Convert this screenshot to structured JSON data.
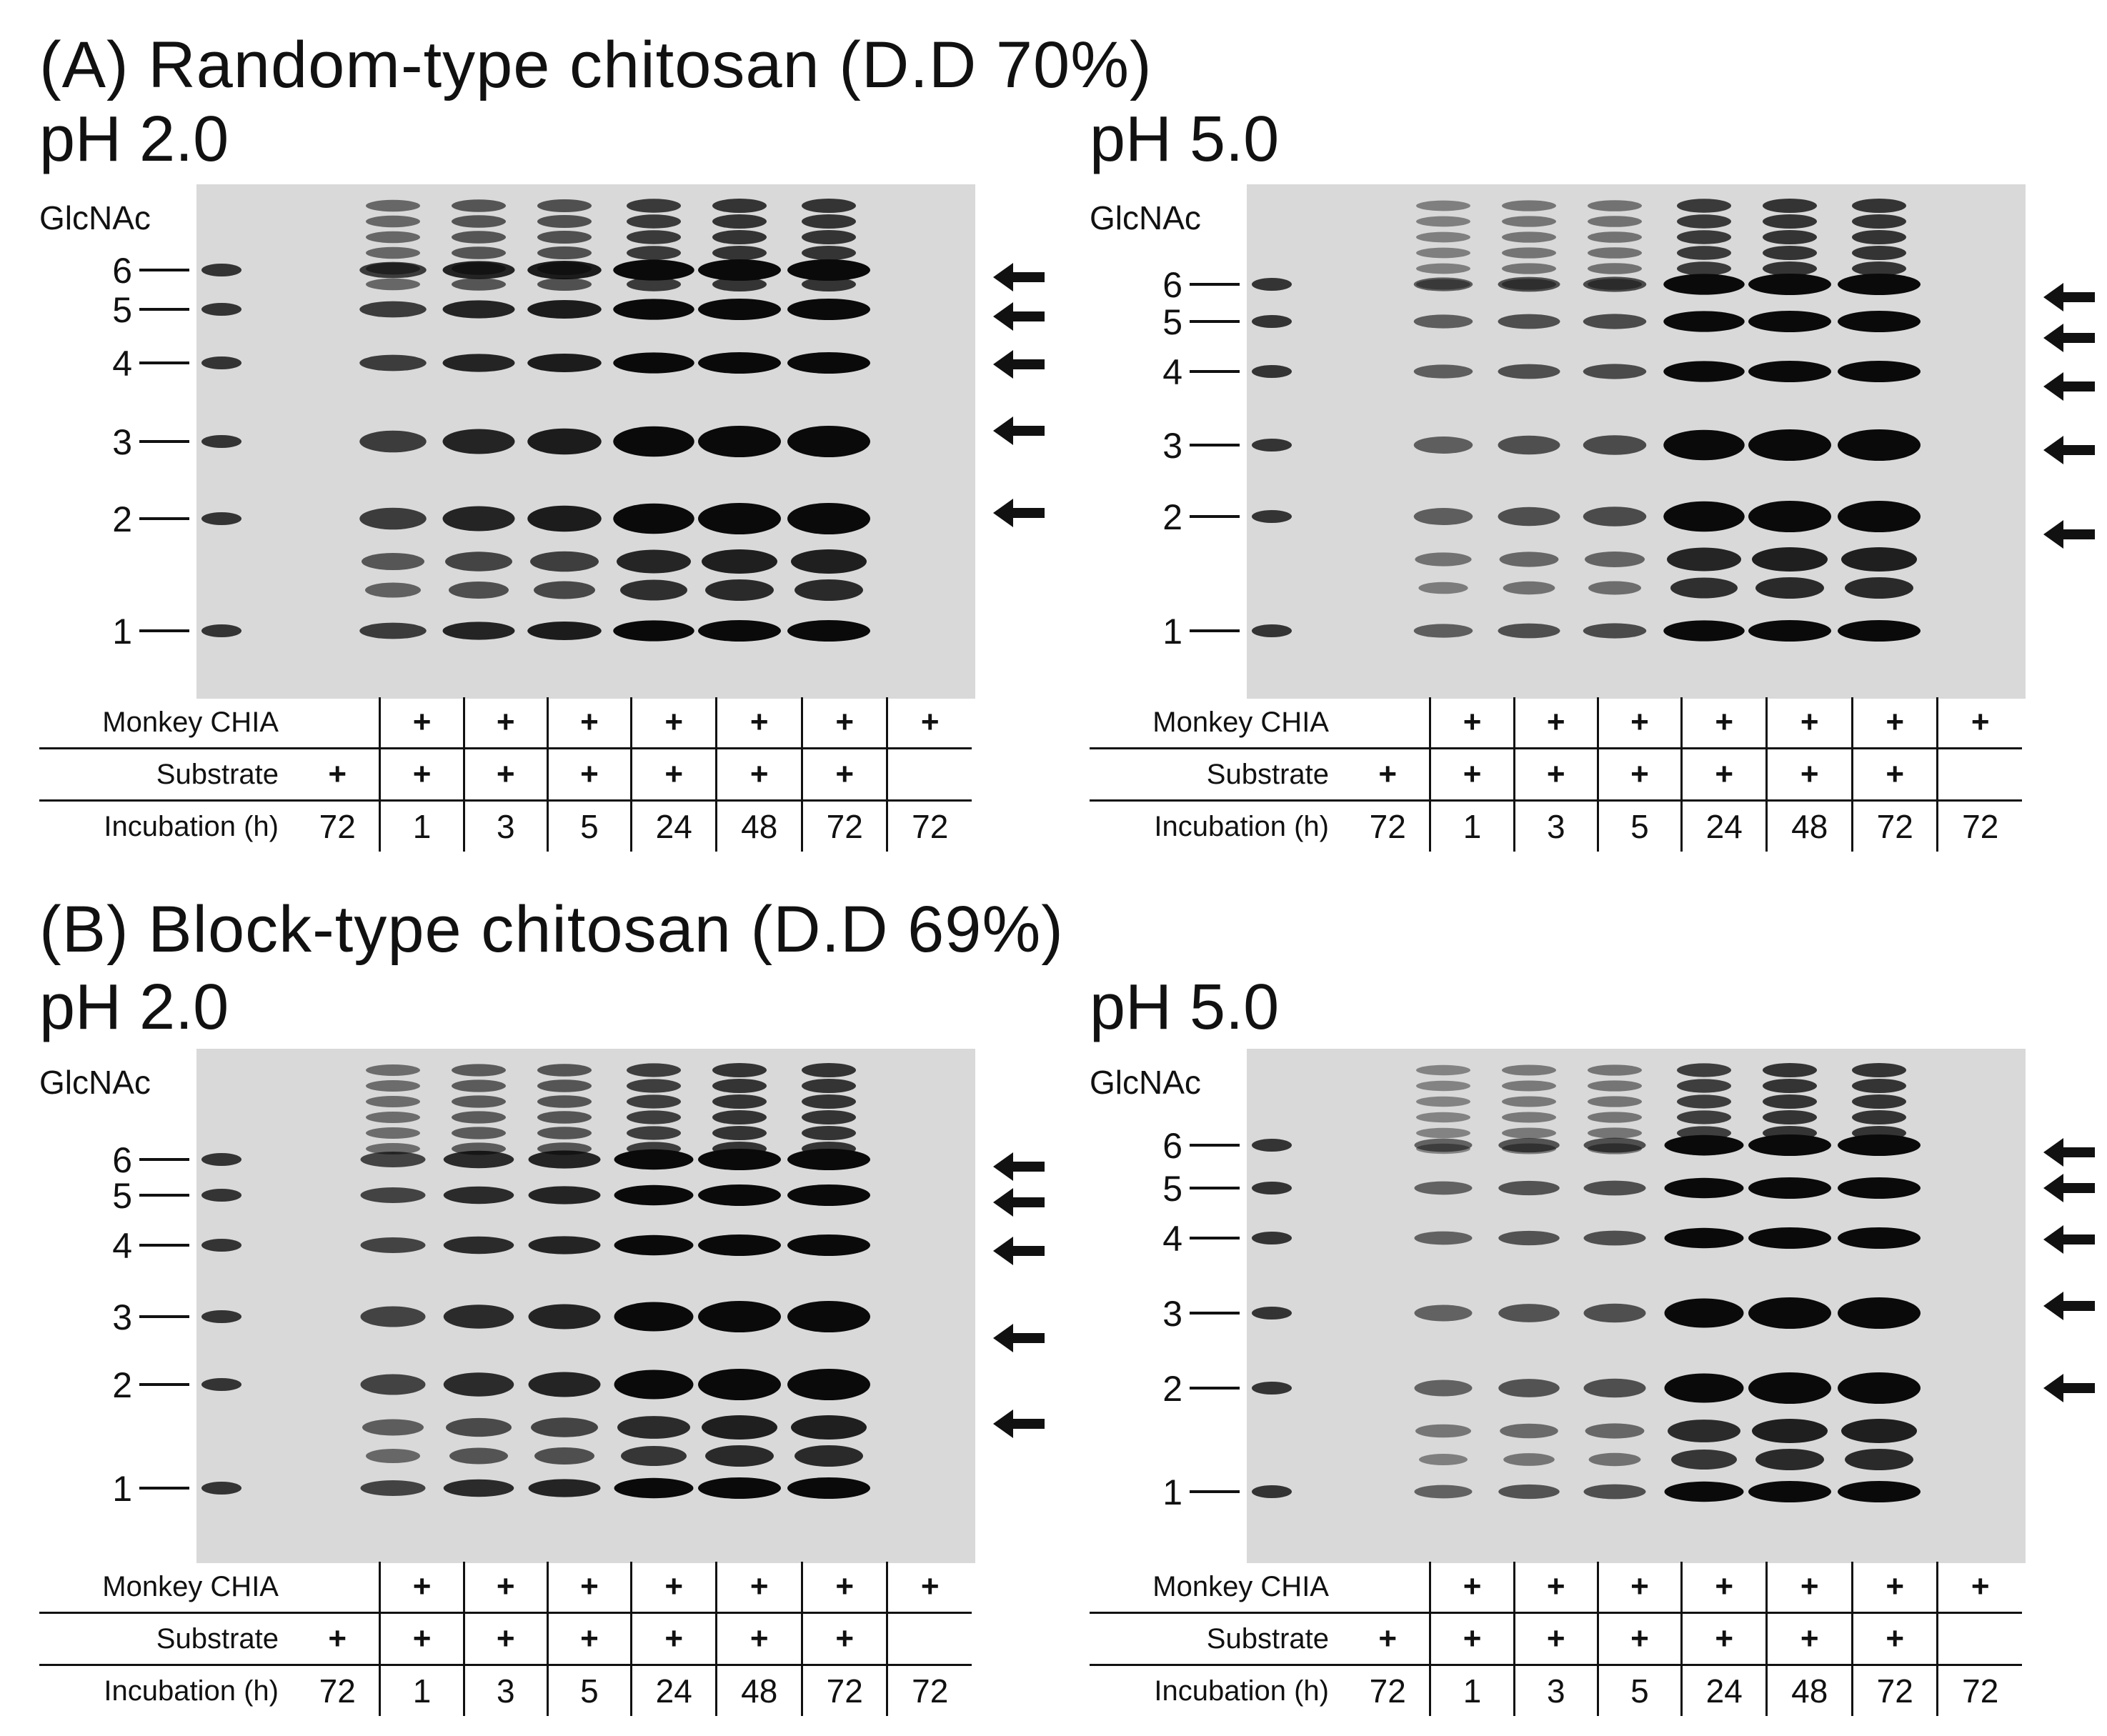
{
  "figure": {
    "sections": [
      {
        "heading": "(A) Random-type chitosan (D.D 70%)",
        "panels": [
          {
            "ph": "pH 2.0",
            "ylabel": "GlcNAc",
            "markers": [
              "6",
              "5",
              "4",
              "3",
              "2",
              "1"
            ],
            "lanes": {
              "rows": [
                {
                  "label": "Monkey CHIA",
                  "cells": [
                    "",
                    "+",
                    "+",
                    "+",
                    "+",
                    "+",
                    "+",
                    "+"
                  ]
                },
                {
                  "label": "Substrate",
                  "cells": [
                    "+",
                    "+",
                    "+",
                    "+",
                    "+",
                    "+",
                    "+",
                    ""
                  ]
                },
                {
                  "label": "Incubation (h)",
                  "cells": [
                    "72",
                    "1",
                    "3",
                    "5",
                    "24",
                    "48",
                    "72",
                    "72"
                  ]
                }
              ]
            },
            "arrow_count": 5
          },
          {
            "ph": "pH 5.0",
            "ylabel": "GlcNAc",
            "markers": [
              "6",
              "5",
              "4",
              "3",
              "2",
              "1"
            ],
            "lanes": {
              "rows": [
                {
                  "label": "Monkey CHIA",
                  "cells": [
                    "",
                    "+",
                    "+",
                    "+",
                    "+",
                    "+",
                    "+",
                    "+"
                  ]
                },
                {
                  "label": "Substrate",
                  "cells": [
                    "+",
                    "+",
                    "+",
                    "+",
                    "+",
                    "+",
                    "+",
                    ""
                  ]
                },
                {
                  "label": "Incubation (h)",
                  "cells": [
                    "72",
                    "1",
                    "3",
                    "5",
                    "24",
                    "48",
                    "72",
                    "72"
                  ]
                }
              ]
            },
            "arrow_count": 5
          }
        ]
      },
      {
        "heading": "(B) Block-type chitosan (D.D 69%)",
        "panels": [
          {
            "ph": "pH 2.0",
            "ylabel": "GlcNAc",
            "markers": [
              "6",
              "5",
              "4",
              "3",
              "2",
              "1"
            ],
            "lanes": {
              "rows": [
                {
                  "label": "Monkey CHIA",
                  "cells": [
                    "",
                    "+",
                    "+",
                    "+",
                    "+",
                    "+",
                    "+",
                    "+"
                  ]
                },
                {
                  "label": "Substrate",
                  "cells": [
                    "+",
                    "+",
                    "+",
                    "+",
                    "+",
                    "+",
                    "+",
                    ""
                  ]
                },
                {
                  "label": "Incubation (h)",
                  "cells": [
                    "72",
                    "1",
                    "3",
                    "5",
                    "24",
                    "48",
                    "72",
                    "72"
                  ]
                }
              ]
            },
            "arrow_count": 5
          },
          {
            "ph": "pH 5.0",
            "ylabel": "GlcNAc",
            "markers": [
              "6",
              "5",
              "4",
              "3",
              "2",
              "1"
            ],
            "lanes": {
              "rows": [
                {
                  "label": "Monkey CHIA",
                  "cells": [
                    "",
                    "+",
                    "+",
                    "+",
                    "+",
                    "+",
                    "+",
                    "+"
                  ]
                },
                {
                  "label": "Substrate",
                  "cells": [
                    "+",
                    "+",
                    "+",
                    "+",
                    "+",
                    "+",
                    "+",
                    ""
                  ]
                },
                {
                  "label": "Incubation (h)",
                  "cells": [
                    "72",
                    "1",
                    "3",
                    "5",
                    "24",
                    "48",
                    "72",
                    "72"
                  ]
                }
              ]
            },
            "arrow_count": 5
          }
        ]
      }
    ],
    "colors": {
      "gel_bg": "#d9d9d9",
      "band": "#0a0a0a",
      "ink": "#111111"
    }
  }
}
